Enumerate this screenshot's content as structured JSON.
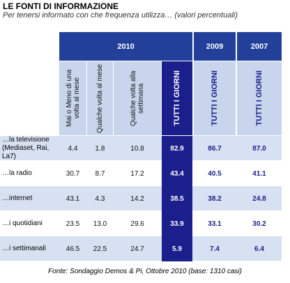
{
  "title": "LE FONTI DI INFORMAZIONE",
  "subtitle": "Per tenersi informato con che frequenza utilizza… (valori percentuali)",
  "table": {
    "year_headers": [
      "2010",
      "2009",
      "2007"
    ],
    "column_headers": [
      "Mai o Meno di una volta al mese",
      "Qualche volta al mese",
      "Qualche volta alla settimana",
      "TUTTI I GIORNI",
      "TUTTI I GIORNI",
      "TUTTI I GIORNI"
    ],
    "rows": [
      [
        "…la televisione (Mediaset, Rai, La7)",
        "4.4",
        "1.8",
        "10.8",
        "82.9",
        "86.7",
        "87.0"
      ],
      [
        "…la radio",
        "30.7",
        "8.7",
        "17.2",
        "43.4",
        "40.5",
        "41.1"
      ],
      [
        "…internet",
        "43.1",
        "4.3",
        "14.2",
        "38.5",
        "38.2",
        "24.8"
      ],
      [
        "…i quotidiani",
        "23.5",
        "13.0",
        "29.6",
        "33.9",
        "33.1",
        "30.2"
      ],
      [
        "…i settimanali",
        "46.5",
        "22.5",
        "24.7",
        "5.9",
        "7.4",
        "6.4"
      ]
    ]
  },
  "source": "Fonte: Sondaggio Demos & Pi, Ottobre 2010 (base: 1310 casi)"
}
